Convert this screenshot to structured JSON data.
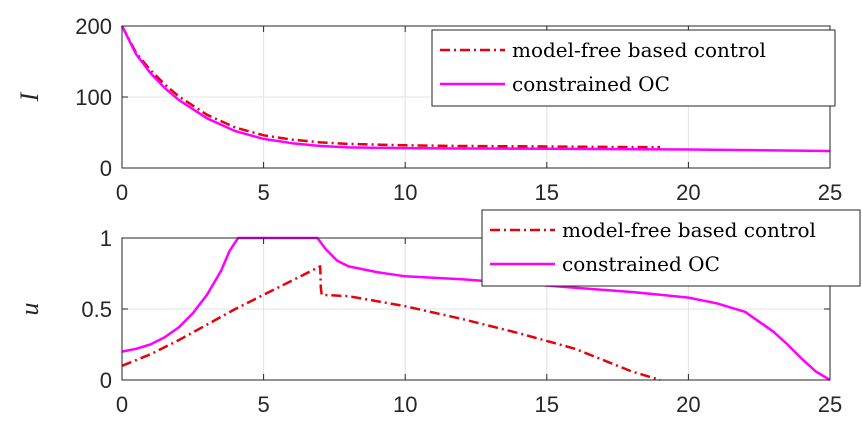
{
  "colors": {
    "model_free": "#e8000b",
    "constrained": "#ff00ff"
  },
  "chart_data": [
    {
      "type": "line",
      "title": "",
      "xlabel": "",
      "ylabel": "I",
      "xlim": [
        0,
        25
      ],
      "ylim": [
        0,
        200
      ],
      "xticks": [
        "0",
        "5",
        "10",
        "15",
        "20",
        "25"
      ],
      "yticks": [
        "0",
        "100",
        "200"
      ],
      "grid": true,
      "legend_position": "top-right",
      "series": [
        {
          "name": "model-free based control",
          "style": "dash-dot",
          "color": "#e8000b",
          "x": [
            0,
            0.5,
            1,
            1.5,
            2,
            3,
            4,
            5,
            6,
            7,
            8,
            10,
            12,
            14,
            16,
            18,
            19
          ],
          "y": [
            200,
            162,
            138,
            118,
            101,
            75,
            57,
            46,
            40,
            36,
            34,
            32,
            31,
            30.5,
            30,
            29.5,
            29.5
          ]
        },
        {
          "name": "constrained OC",
          "style": "solid",
          "color": "#ff00ff",
          "x": [
            0,
            0.5,
            1,
            1.5,
            2,
            3,
            4,
            5,
            6,
            7,
            8,
            10,
            12,
            15,
            20,
            25
          ],
          "y": [
            200,
            160,
            134,
            113,
            96,
            70,
            52,
            41,
            35,
            31,
            29,
            28,
            27.5,
            27,
            26,
            24
          ]
        }
      ]
    },
    {
      "type": "line",
      "title": "",
      "xlabel": "",
      "ylabel": "u",
      "xlim": [
        0,
        25
      ],
      "ylim": [
        0,
        1
      ],
      "xticks": [
        "0",
        "5",
        "10",
        "15",
        "20",
        "25"
      ],
      "yticks": [
        "0",
        "0.5",
        "1"
      ],
      "grid": true,
      "legend_position": "top-right",
      "series": [
        {
          "name": "model-free based control",
          "style": "dash-dot",
          "color": "#e8000b",
          "x": [
            0,
            1,
            2,
            3,
            4,
            5,
            6,
            6.9,
            7.0,
            7.02,
            7.05,
            8,
            10,
            12,
            14,
            16,
            18,
            19
          ],
          "y": [
            0.1,
            0.18,
            0.28,
            0.39,
            0.5,
            0.6,
            0.7,
            0.79,
            0.8,
            0.65,
            0.6,
            0.59,
            0.52,
            0.43,
            0.33,
            0.22,
            0.06,
            0
          ]
        },
        {
          "name": "constrained OC",
          "style": "solid",
          "color": "#ff00ff",
          "x": [
            0,
            0.5,
            1,
            1.5,
            2,
            2.5,
            3,
            3.5,
            3.8,
            4.1,
            4.5,
            5,
            6,
            6.9,
            7.2,
            7.6,
            8,
            9,
            10,
            12,
            14,
            16,
            18,
            19,
            20,
            21,
            22,
            23,
            23.5,
            24,
            24.5,
            25
          ],
          "y": [
            0.2,
            0.22,
            0.25,
            0.3,
            0.37,
            0.47,
            0.6,
            0.77,
            0.91,
            1,
            1,
            1,
            1,
            1,
            0.92,
            0.84,
            0.8,
            0.76,
            0.73,
            0.71,
            0.68,
            0.65,
            0.62,
            0.6,
            0.58,
            0.54,
            0.48,
            0.34,
            0.25,
            0.15,
            0.06,
            0
          ]
        }
      ]
    }
  ]
}
